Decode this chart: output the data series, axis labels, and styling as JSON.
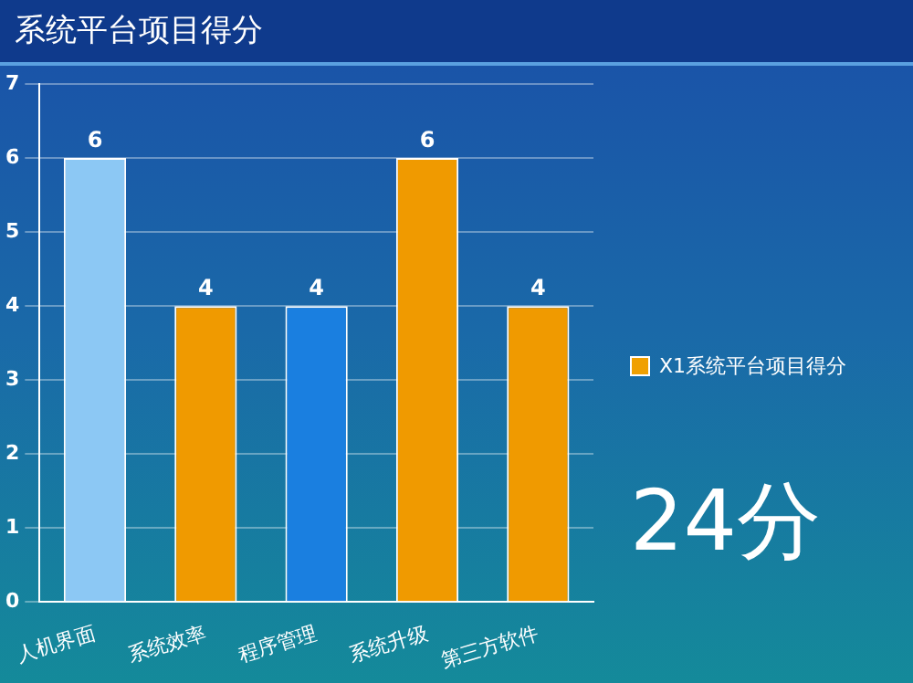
{
  "chart_data": {
    "type": "bar",
    "title": "系统平台项目得分",
    "categories": [
      "人机界面",
      "系统效率",
      "程序管理",
      "系统升级",
      "第三方软件"
    ],
    "series": [
      {
        "name": "X1系统平台项目得分",
        "color": "#f0a000",
        "colors": [
          "#8cc8f4",
          "#f09a00",
          "#1a7fe0",
          "#f09a00",
          "#f09a00"
        ],
        "values": [
          6,
          4,
          4,
          6,
          4
        ]
      }
    ],
    "ylim": [
      0,
      7
    ],
    "yticks": [
      0,
      1,
      2,
      3,
      4,
      5,
      6,
      7
    ],
    "grid": "y",
    "legend": "right",
    "data_labels": true,
    "annotations": [
      "24分"
    ]
  }
}
